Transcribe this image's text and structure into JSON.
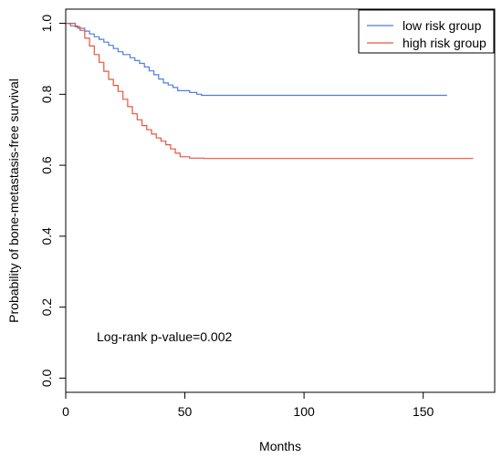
{
  "chart_data": {
    "type": "line",
    "title": "",
    "xlabel": "Months",
    "ylabel": "Probability of bone-metastasis-free survival",
    "xlim": [
      0,
      180
    ],
    "ylim": [
      -0.04,
      1.04
    ],
    "xticks": [
      0,
      50,
      100,
      150
    ],
    "yticks": [
      0.0,
      0.2,
      0.4,
      0.6,
      0.8,
      1.0
    ],
    "xtick_labels": [
      "0",
      "50",
      "100",
      "150"
    ],
    "ytick_labels": [
      "0.0",
      "0.2",
      "0.4",
      "0.6",
      "0.8",
      "1.0"
    ],
    "grid": false,
    "legend_position": "top-right",
    "annotation": "Log-rank p-value=0.002",
    "series": [
      {
        "name": "low risk group",
        "color": "#4d7fe0",
        "x": [
          0,
          2,
          5,
          8,
          10,
          12,
          14,
          16,
          18,
          20,
          22,
          24,
          27,
          29,
          31,
          33,
          35,
          37,
          39,
          41,
          43,
          45,
          47,
          52,
          55,
          57,
          80,
          110,
          140,
          160
        ],
        "y": [
          1.0,
          0.993,
          0.986,
          0.978,
          0.97,
          0.962,
          0.955,
          0.947,
          0.938,
          0.929,
          0.92,
          0.912,
          0.903,
          0.895,
          0.887,
          0.877,
          0.866,
          0.855,
          0.843,
          0.832,
          0.826,
          0.819,
          0.81,
          0.805,
          0.8,
          0.797,
          0.797,
          0.797,
          0.797,
          0.797
        ]
      },
      {
        "name": "high risk group",
        "color": "#e8553d",
        "x": [
          0,
          4,
          6,
          8,
          10,
          12,
          14,
          16,
          18,
          20,
          22,
          24,
          26,
          28,
          30,
          32,
          34,
          36,
          38,
          40,
          42,
          44,
          46,
          48,
          52,
          58,
          80,
          120,
          150,
          171
        ],
        "y": [
          1.0,
          0.99,
          0.98,
          0.958,
          0.936,
          0.912,
          0.89,
          0.865,
          0.842,
          0.825,
          0.808,
          0.786,
          0.765,
          0.745,
          0.728,
          0.712,
          0.7,
          0.688,
          0.677,
          0.668,
          0.658,
          0.646,
          0.634,
          0.624,
          0.62,
          0.619,
          0.619,
          0.619,
          0.619,
          0.619
        ]
      }
    ]
  }
}
